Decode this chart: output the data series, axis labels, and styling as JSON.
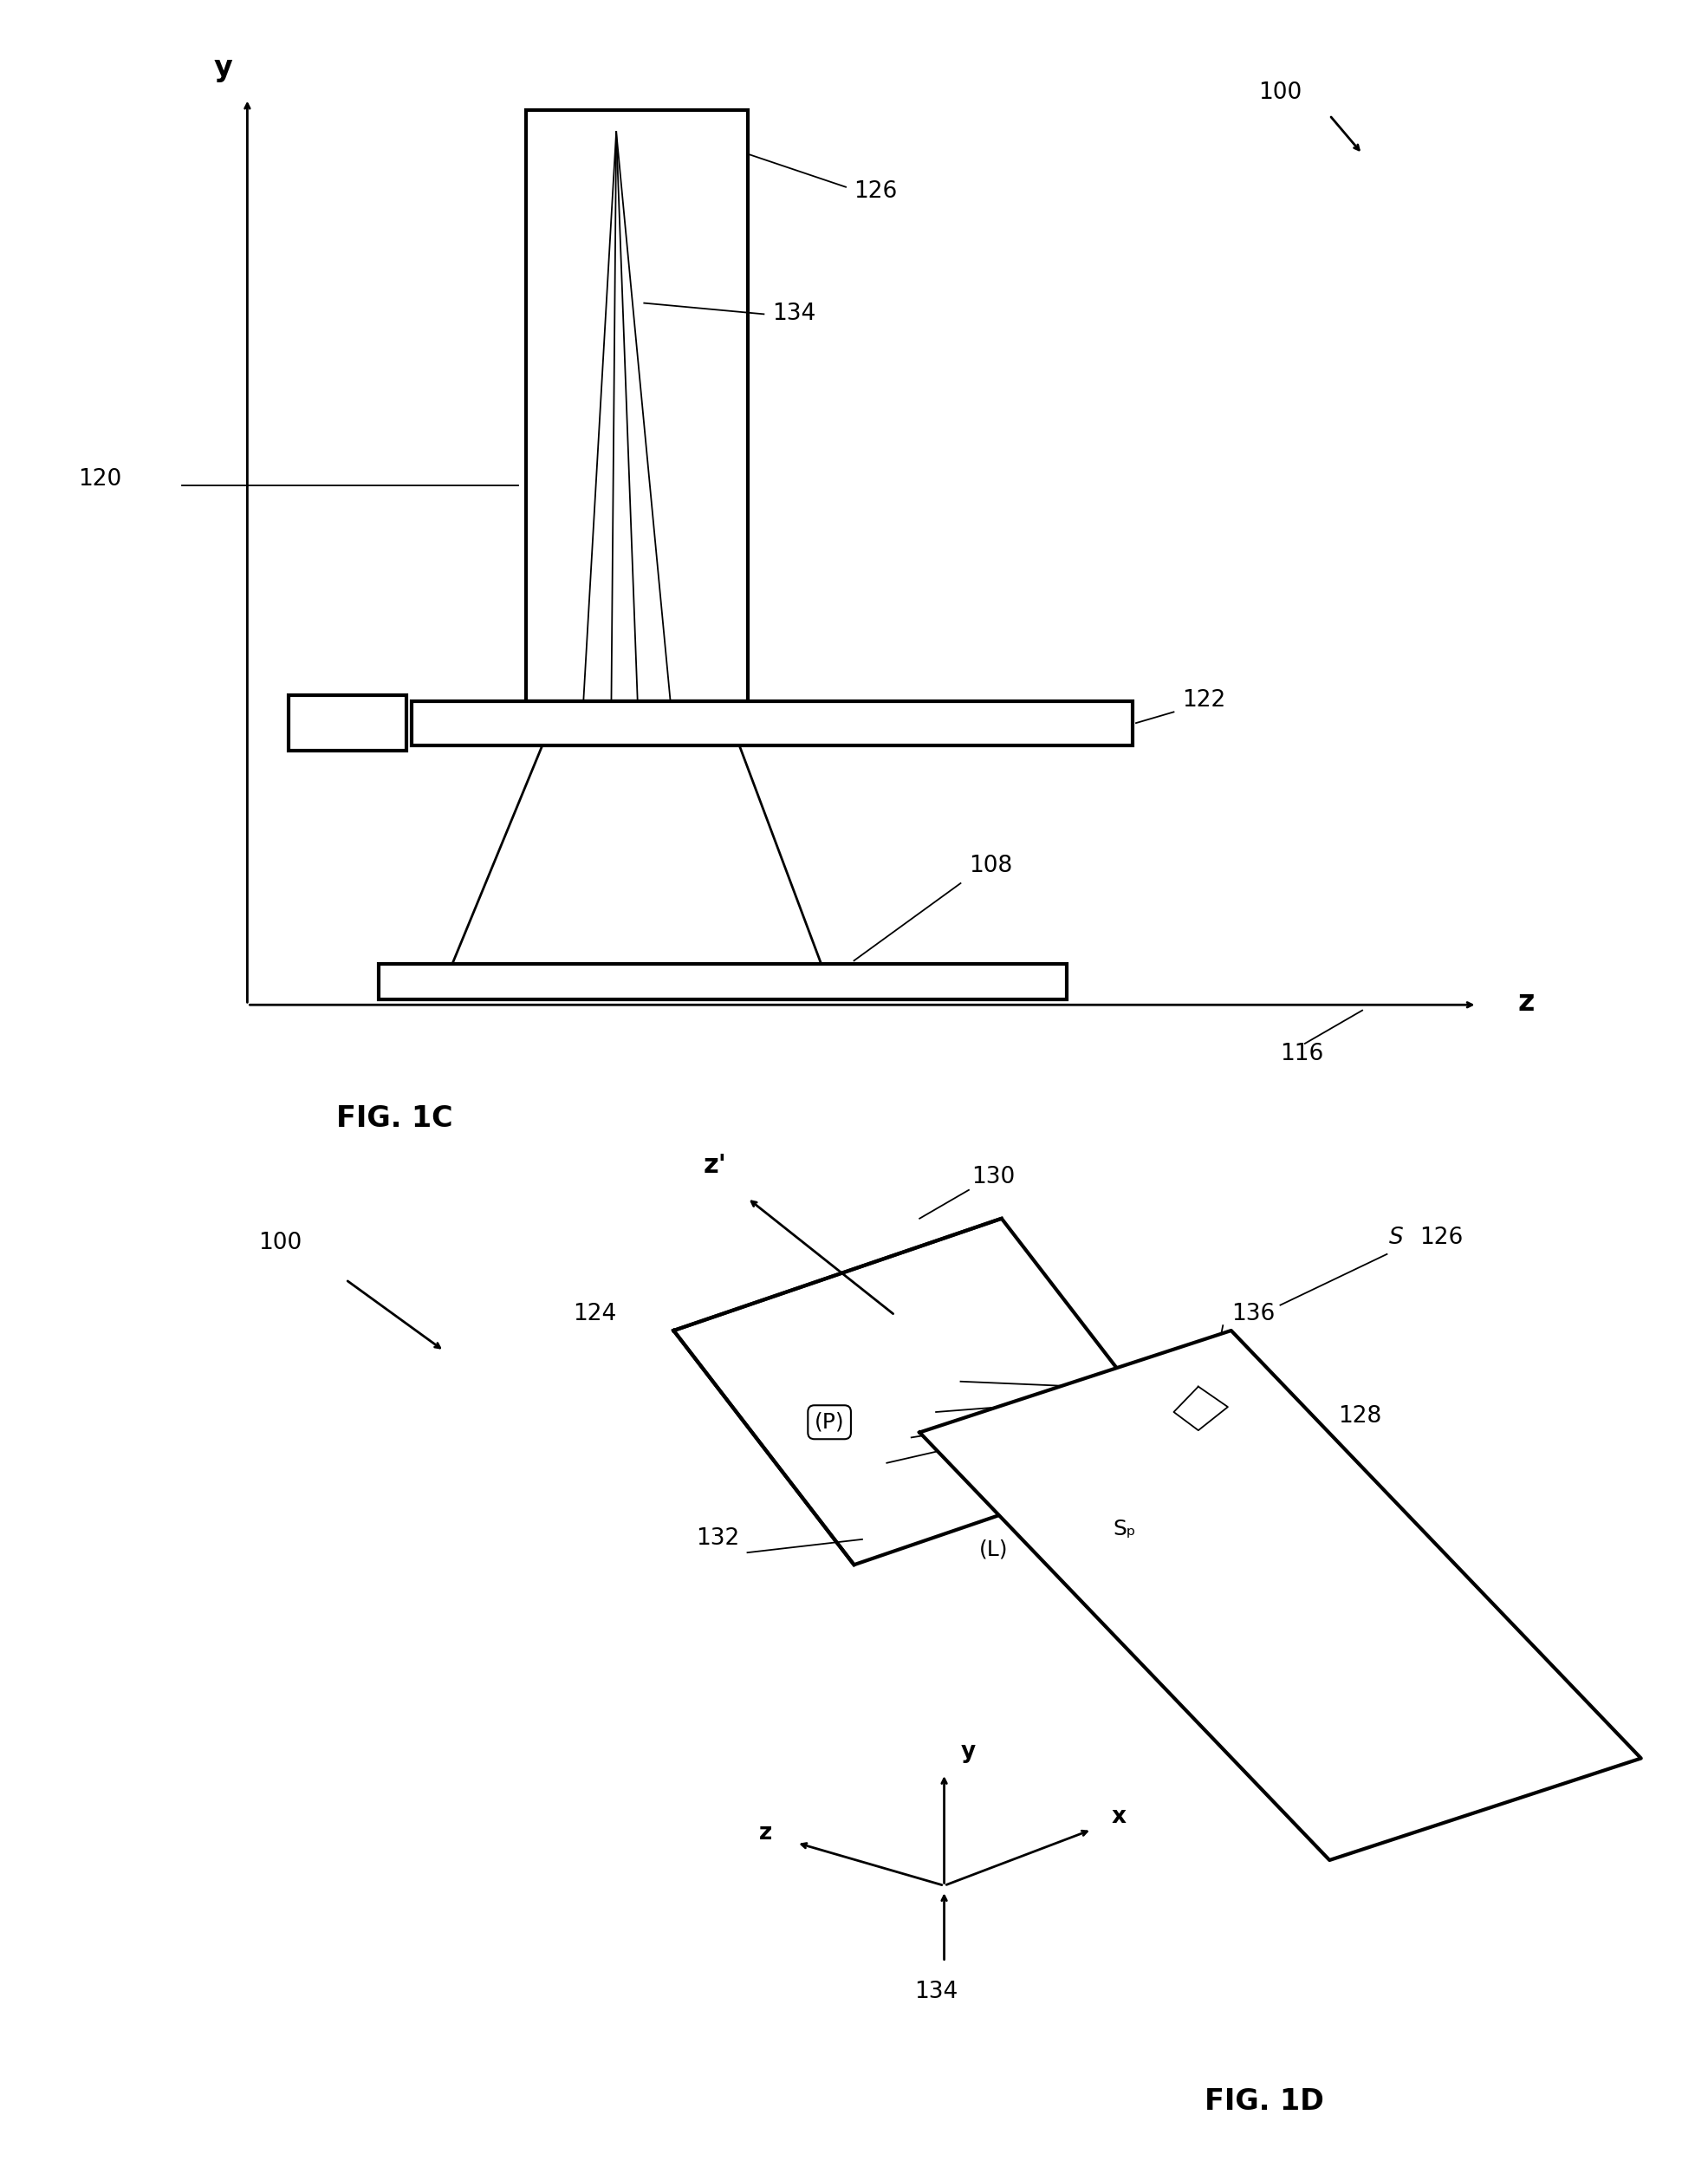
{
  "bg_color": "#ffffff",
  "line_color": "#000000",
  "fig1c": {
    "title": "FIG. 1C",
    "label_100": "100",
    "label_120": "120",
    "label_122": "122",
    "label_126": "126",
    "label_134": "134",
    "label_108": "108",
    "label_116": "116",
    "axis_y_label": "y",
    "axis_z_label": "z"
  },
  "fig1d": {
    "title": "FIG. 1D",
    "label_100": "100",
    "label_124": "124",
    "label_126": "126",
    "label_128": "128",
    "label_130": "130",
    "label_132": "132",
    "label_134": "134",
    "label_136": "136",
    "label_S": "S",
    "label_P": "(P)",
    "label_L": "(L)",
    "label_Sp": "Sₚ",
    "label_zp": "z'",
    "axis_x": "x",
    "axis_y": "y",
    "axis_z": "z"
  }
}
